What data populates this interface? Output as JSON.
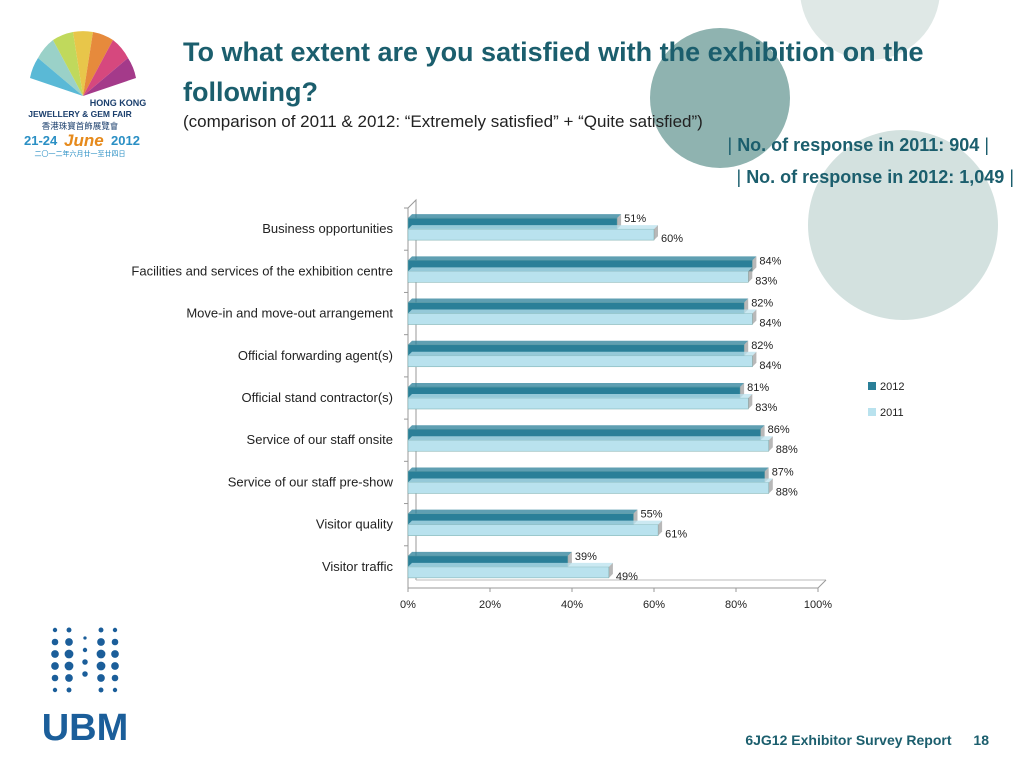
{
  "header": {
    "title": "To what extent are you satisfied with the exhibition on the following?",
    "subtitle": "(comparison of 2011 & 2012: “Extremely satisfied” + “Quite satisfied”)",
    "response_2011": "No. of response in  2011: 904",
    "response_2012": "No. of response in  2012: 1,049",
    "bar_glyph": "|"
  },
  "logo": {
    "line1": "HONG KONG",
    "line2": "JEWELLERY & GEM FAIR",
    "line3": "香港珠寶首飾展覽會",
    "dates": "21-24",
    "month": "June",
    "year": "2012",
    "chinese_dates": "二〇一二年六月廿一至廿四日"
  },
  "brand": {
    "name": "UBM",
    "color": "#1b5e9a"
  },
  "footer": {
    "report": "6JG12 Exhibitor Survey Report",
    "page": "18"
  },
  "colors": {
    "bar2012": "#2a7f98",
    "bar2011": "#b9e2ee",
    "title": "#1b5e6d"
  },
  "chart_data": {
    "type": "bar",
    "orientation": "horizontal",
    "categories": [
      "Business opportunities",
      "Facilities and services of the exhibition centre",
      "Move-in and move-out arrangement",
      "Official forwarding agent(s)",
      "Official stand contractor(s)",
      "Service of our staff onsite",
      "Service of our staff pre-show",
      "Visitor quality",
      "Visitor traffic"
    ],
    "series": [
      {
        "name": "2012",
        "values": [
          51,
          84,
          82,
          82,
          81,
          86,
          87,
          55,
          39
        ]
      },
      {
        "name": "2011",
        "values": [
          60,
          83,
          84,
          84,
          83,
          88,
          88,
          61,
          49
        ]
      }
    ],
    "value_format": "percent",
    "xlim": [
      0,
      100
    ],
    "xticks": [
      "0%",
      "20%",
      "40%",
      "60%",
      "80%",
      "100%"
    ],
    "legend_position": "right",
    "grid": false
  }
}
